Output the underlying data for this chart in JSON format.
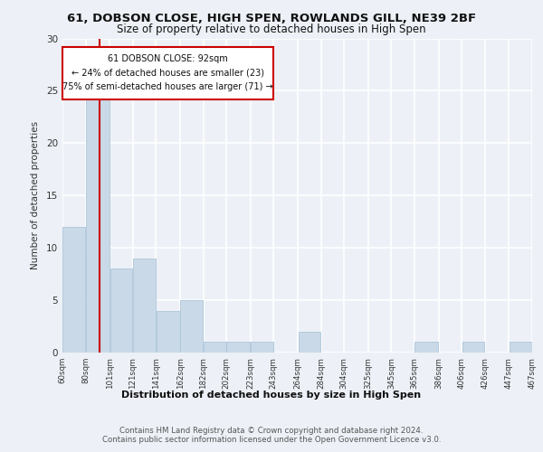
{
  "title1": "61, DOBSON CLOSE, HIGH SPEN, ROWLANDS GILL, NE39 2BF",
  "title2": "Size of property relative to detached houses in High Spen",
  "xlabel": "Distribution of detached houses by size in High Spen",
  "ylabel": "Number of detached properties",
  "bar_color": "#c9d9e8",
  "bar_edge_color": "#aec6d8",
  "annotation_line_color": "#cc0000",
  "annotation_box_color": "#cc0000",
  "annotation_text": "61 DOBSON CLOSE: 92sqm\n← 24% of detached houses are smaller (23)\n75% of semi-detached houses are larger (71) →",
  "footer1": "Contains HM Land Registry data © Crown copyright and database right 2024.",
  "footer2": "Contains public sector information licensed under the Open Government Licence v3.0.",
  "bins": [
    60,
    80,
    101,
    121,
    141,
    162,
    182,
    202,
    223,
    243,
    264,
    284,
    304,
    325,
    345,
    365,
    386,
    406,
    426,
    447,
    467
  ],
  "counts": [
    12,
    25,
    8,
    9,
    4,
    5,
    1,
    1,
    1,
    0,
    2,
    0,
    0,
    0,
    0,
    1,
    0,
    1,
    0,
    1
  ],
  "property_size": 92,
  "ylim": [
    0,
    30
  ],
  "background_color": "#edf1f7",
  "grid_color": "#ffffff"
}
